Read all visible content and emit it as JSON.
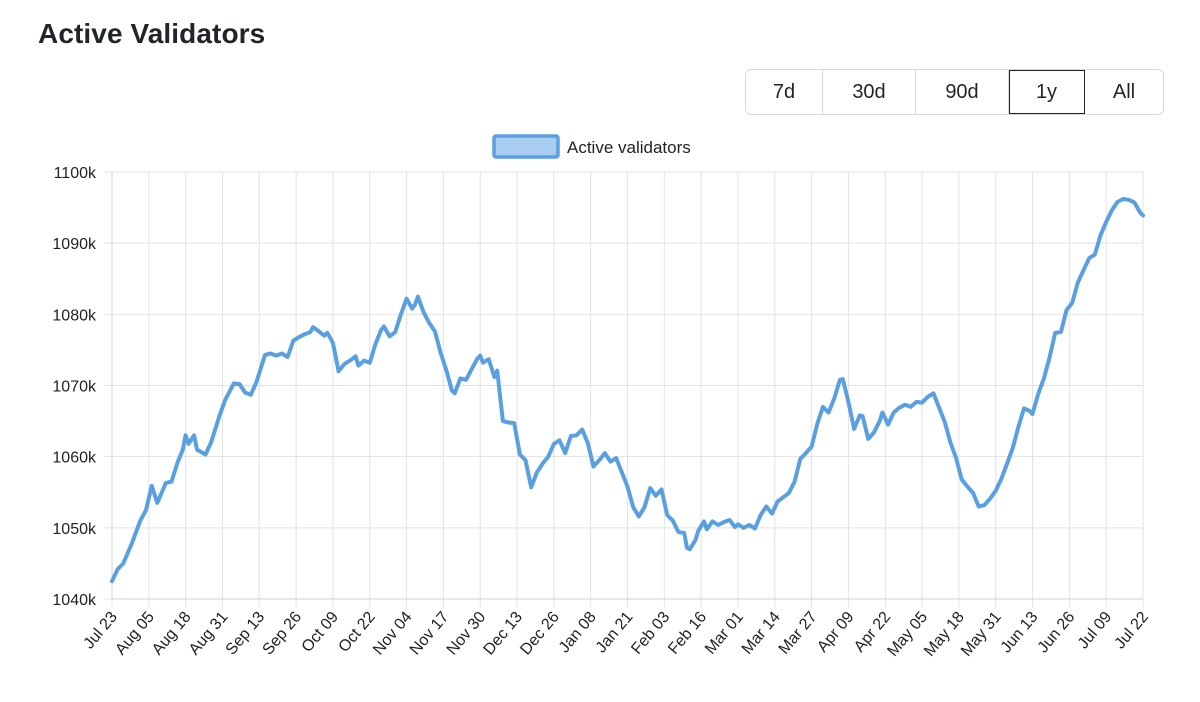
{
  "page": {
    "title": "Active Validators"
  },
  "range_buttons": [
    {
      "label": "7d",
      "active": false
    },
    {
      "label": "30d",
      "active": false
    },
    {
      "label": "90d",
      "active": false
    },
    {
      "label": "1y",
      "active": true
    },
    {
      "label": "All",
      "active": false
    }
  ],
  "colors": {
    "series_line": "#5aa0e0",
    "series_fill": "#a9cdf0",
    "grid": "#e2e2e2",
    "axis": "#cfcfcf"
  },
  "chart_data": {
    "type": "line",
    "title": "",
    "xlabel": "",
    "ylabel": "",
    "y_tick_labels": [
      "1040k",
      "1050k",
      "1060k",
      "1070k",
      "1080k",
      "1090k",
      "1100k"
    ],
    "y_tick_values": [
      1040000,
      1050000,
      1060000,
      1070000,
      1080000,
      1090000,
      1100000
    ],
    "ylim": [
      1040000,
      1100000
    ],
    "x_tick_labels": [
      "Jul 23",
      "Aug 05",
      "Aug 18",
      "Aug 31",
      "Sep 13",
      "Sep 26",
      "Oct 09",
      "Oct 22",
      "Nov 04",
      "Nov 17",
      "Nov 30",
      "Dec 13",
      "Dec 26",
      "Jan 08",
      "Jan 21",
      "Feb 03",
      "Feb 16",
      "Mar 01",
      "Mar 14",
      "Mar 27",
      "Apr 09",
      "Apr 22",
      "May 05",
      "May 18",
      "May 31",
      "Jun 13",
      "Jun 26",
      "Jul 09",
      "Jul 22"
    ],
    "grid": true,
    "legend_position": "top-center",
    "series": [
      {
        "name": "Active validators",
        "points": [
          [
            "Jul 23",
            1042500
          ],
          [
            "Jul 25",
            1044200
          ],
          [
            "Jul 27",
            1045000
          ],
          [
            "Jul 30",
            1047800
          ],
          [
            "Aug 02",
            1051000
          ],
          [
            "Aug 04",
            1052500
          ],
          [
            "Aug 06",
            1055900
          ],
          [
            "Aug 08",
            1053500
          ],
          [
            "Aug 11",
            1056300
          ],
          [
            "Aug 13",
            1056500
          ],
          [
            "Aug 15",
            1059000
          ],
          [
            "Aug 17",
            1061000
          ],
          [
            "Aug 18",
            1063000
          ],
          [
            "Aug 19",
            1061800
          ],
          [
            "Aug 21",
            1063000
          ],
          [
            "Aug 22",
            1061000
          ],
          [
            "Aug 25",
            1060300
          ],
          [
            "Aug 27",
            1062000
          ],
          [
            "Aug 30",
            1065800
          ],
          [
            "Sep 01",
            1068000
          ],
          [
            "Sep 04",
            1070300
          ],
          [
            "Sep 06",
            1070200
          ],
          [
            "Sep 08",
            1069000
          ],
          [
            "Sep 10",
            1068700
          ],
          [
            "Sep 12",
            1070500
          ],
          [
            "Sep 15",
            1074300
          ],
          [
            "Sep 17",
            1074500
          ],
          [
            "Sep 19",
            1074200
          ],
          [
            "Sep 21",
            1074500
          ],
          [
            "Sep 23",
            1074000
          ],
          [
            "Sep 25",
            1076300
          ],
          [
            "Sep 27",
            1076800
          ],
          [
            "Sep 29",
            1077200
          ],
          [
            "Oct 01",
            1077500
          ],
          [
            "Oct 02",
            1078200
          ],
          [
            "Oct 04",
            1077600
          ],
          [
            "Oct 06",
            1077000
          ],
          [
            "Oct 07",
            1077400
          ],
          [
            "Oct 09",
            1076000
          ],
          [
            "Oct 11",
            1072000
          ],
          [
            "Oct 13",
            1073000
          ],
          [
            "Oct 15",
            1073500
          ],
          [
            "Oct 17",
            1074100
          ],
          [
            "Oct 18",
            1072800
          ],
          [
            "Oct 20",
            1073500
          ],
          [
            "Oct 22",
            1073200
          ],
          [
            "Oct 24",
            1075800
          ],
          [
            "Oct 26",
            1077800
          ],
          [
            "Oct 27",
            1078300
          ],
          [
            "Oct 29",
            1076900
          ],
          [
            "Oct 31",
            1077500
          ],
          [
            "Nov 02",
            1080000
          ],
          [
            "Nov 04",
            1082200
          ],
          [
            "Nov 05",
            1081500
          ],
          [
            "Nov 06",
            1080800
          ],
          [
            "Nov 07",
            1081400
          ],
          [
            "Nov 08",
            1082500
          ],
          [
            "Nov 10",
            1080300
          ],
          [
            "Nov 12",
            1078800
          ],
          [
            "Nov 14",
            1077600
          ],
          [
            "Nov 16",
            1074600
          ],
          [
            "Nov 18",
            1072200
          ],
          [
            "Nov 20",
            1069300
          ],
          [
            "Nov 21",
            1068900
          ],
          [
            "Nov 23",
            1071000
          ],
          [
            "Nov 25",
            1070800
          ],
          [
            "Nov 27",
            1072300
          ],
          [
            "Nov 29",
            1073800
          ],
          [
            "Nov 30",
            1074200
          ],
          [
            "Dec 01",
            1073200
          ],
          [
            "Dec 03",
            1073700
          ],
          [
            "Dec 05",
            1071200
          ],
          [
            "Dec 06",
            1072100
          ],
          [
            "Dec 08",
            1065000
          ],
          [
            "Dec 10",
            1064800
          ],
          [
            "Dec 12",
            1064700
          ],
          [
            "Dec 14",
            1060300
          ],
          [
            "Dec 16",
            1059500
          ],
          [
            "Dec 18",
            1055700
          ],
          [
            "Dec 20",
            1057800
          ],
          [
            "Dec 22",
            1059000
          ],
          [
            "Dec 24",
            1060000
          ],
          [
            "Dec 26",
            1061800
          ],
          [
            "Dec 28",
            1062300
          ],
          [
            "Dec 30",
            1060500
          ],
          [
            "Jan 01",
            1062900
          ],
          [
            "Jan 03",
            1063000
          ],
          [
            "Jan 05",
            1063800
          ],
          [
            "Jan 07",
            1061900
          ],
          [
            "Jan 09",
            1058600
          ],
          [
            "Jan 11",
            1059500
          ],
          [
            "Jan 13",
            1060500
          ],
          [
            "Jan 15",
            1059300
          ],
          [
            "Jan 17",
            1059800
          ],
          [
            "Jan 19",
            1057800
          ],
          [
            "Jan 21",
            1055800
          ],
          [
            "Jan 23",
            1052900
          ],
          [
            "Jan 25",
            1051600
          ],
          [
            "Jan 27",
            1052900
          ],
          [
            "Jan 29",
            1055600
          ],
          [
            "Jan 31",
            1054500
          ],
          [
            "Feb 02",
            1055400
          ],
          [
            "Feb 04",
            1051800
          ],
          [
            "Feb 06",
            1051000
          ],
          [
            "Feb 08",
            1049400
          ],
          [
            "Feb 10",
            1049300
          ],
          [
            "Feb 11",
            1047200
          ],
          [
            "Feb 12",
            1047000
          ],
          [
            "Feb 14",
            1048300
          ],
          [
            "Feb 15",
            1049600
          ],
          [
            "Feb 17",
            1050900
          ],
          [
            "Feb 18",
            1049800
          ],
          [
            "Feb 20",
            1050900
          ],
          [
            "Feb 22",
            1050400
          ],
          [
            "Feb 24",
            1050800
          ],
          [
            "Feb 26",
            1051100
          ],
          [
            "Feb 28",
            1050100
          ],
          [
            "Mar 01",
            1050500
          ],
          [
            "Mar 03",
            1050000
          ],
          [
            "Mar 05",
            1050400
          ],
          [
            "Mar 07",
            1049900
          ],
          [
            "Mar 09",
            1051800
          ],
          [
            "Mar 11",
            1053000
          ],
          [
            "Mar 13",
            1052000
          ],
          [
            "Mar 15",
            1053700
          ],
          [
            "Mar 17",
            1054300
          ],
          [
            "Mar 19",
            1054900
          ],
          [
            "Mar 21",
            1056500
          ],
          [
            "Mar 23",
            1059700
          ],
          [
            "Mar 25",
            1060500
          ],
          [
            "Mar 27",
            1061400
          ],
          [
            "Mar 29",
            1064600
          ],
          [
            "Mar 31",
            1067000
          ],
          [
            "Apr 02",
            1066200
          ],
          [
            "Apr 04",
            1068200
          ],
          [
            "Apr 06",
            1070800
          ],
          [
            "Apr 07",
            1070900
          ],
          [
            "Apr 09",
            1067700
          ],
          [
            "Apr 11",
            1063900
          ],
          [
            "Apr 13",
            1065800
          ],
          [
            "Apr 14",
            1065700
          ],
          [
            "Apr 16",
            1062500
          ],
          [
            "Apr 18",
            1063400
          ],
          [
            "Apr 20",
            1065000
          ],
          [
            "Apr 21",
            1066200
          ],
          [
            "Apr 23",
            1064500
          ],
          [
            "Apr 25",
            1066200
          ],
          [
            "Apr 27",
            1066900
          ],
          [
            "Apr 29",
            1067300
          ],
          [
            "May 01",
            1067000
          ],
          [
            "May 03",
            1067700
          ],
          [
            "May 05",
            1067600
          ],
          [
            "May 07",
            1068400
          ],
          [
            "May 09",
            1068900
          ],
          [
            "May 11",
            1066900
          ],
          [
            "May 13",
            1064900
          ],
          [
            "May 15",
            1062000
          ],
          [
            "May 17",
            1059800
          ],
          [
            "May 19",
            1056800
          ],
          [
            "May 21",
            1055800
          ],
          [
            "May 23",
            1054900
          ],
          [
            "May 25",
            1053000
          ],
          [
            "May 27",
            1053200
          ],
          [
            "May 29",
            1054100
          ],
          [
            "May 31",
            1055200
          ],
          [
            "Jun 02",
            1056900
          ],
          [
            "Jun 04",
            1059000
          ],
          [
            "Jun 06",
            1061200
          ],
          [
            "Jun 08",
            1064200
          ],
          [
            "Jun 10",
            1066800
          ],
          [
            "Jun 12",
            1066400
          ],
          [
            "Jun 13",
            1066000
          ],
          [
            "Jun 15",
            1068800
          ],
          [
            "Jun 17",
            1071000
          ],
          [
            "Jun 19",
            1073900
          ],
          [
            "Jun 21",
            1077400
          ],
          [
            "Jun 23",
            1077500
          ],
          [
            "Jun 25",
            1080600
          ],
          [
            "Jun 27",
            1081600
          ],
          [
            "Jun 29",
            1084500
          ],
          [
            "Jul 01",
            1086200
          ],
          [
            "Jul 03",
            1087900
          ],
          [
            "Jul 05",
            1088400
          ],
          [
            "Jul 07",
            1091100
          ],
          [
            "Jul 09",
            1093000
          ],
          [
            "Jul 11",
            1094600
          ],
          [
            "Jul 13",
            1095800
          ],
          [
            "Jul 15",
            1096200
          ],
          [
            "Jul 17",
            1096100
          ],
          [
            "Jul 19",
            1095700
          ],
          [
            "Jul 21",
            1094300
          ],
          [
            "Jul 22",
            1093900
          ]
        ]
      }
    ]
  }
}
